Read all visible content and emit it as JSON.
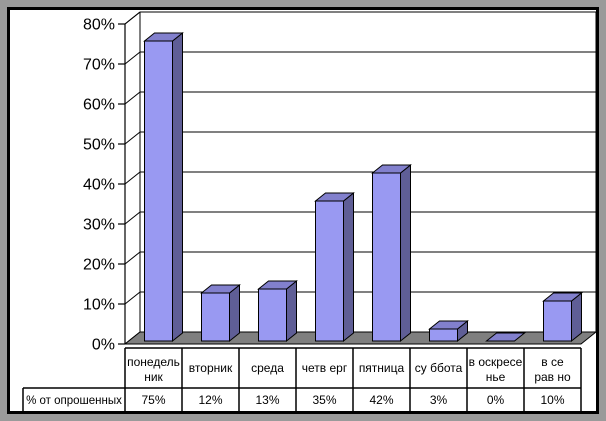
{
  "chart_data": {
    "type": "bar",
    "style": "3d-column",
    "title": "",
    "xlabel": "",
    "ylabel": "",
    "ylim": [
      0,
      80
    ],
    "ytick_step": 10,
    "ytick_labels": [
      "0%",
      "10%",
      "20%",
      "30%",
      "40%",
      "50%",
      "60%",
      "70%",
      "80%"
    ],
    "grid": true,
    "legend_position": "none",
    "categories": [
      "понедельник",
      "вторник",
      "среда",
      "четверг",
      "пятница",
      "суббота",
      "воскресенье",
      "все равно"
    ],
    "category_labels_wrapped": [
      [
        "понедель",
        "ник"
      ],
      [
        "вторник"
      ],
      [
        "среда"
      ],
      [
        "четв ерг"
      ],
      [
        "пятница"
      ],
      [
        "су ббота"
      ],
      [
        "в оскресе",
        "нье"
      ],
      [
        "в се",
        "рав но"
      ]
    ],
    "series": [
      {
        "name": "% от опрошенных",
        "values": [
          75,
          12,
          13,
          35,
          42,
          3,
          0,
          10
        ],
        "value_labels": [
          "75%",
          "12%",
          "13%",
          "35%",
          "42%",
          "3%",
          "0%",
          "10%"
        ]
      }
    ],
    "data_table": {
      "row_header": "% от опрошенных",
      "row_values": [
        "75%",
        "12%",
        "13%",
        "35%",
        "42%",
        "3%",
        "0%",
        "10%"
      ]
    }
  },
  "colors": {
    "bar_front": "#9999F2",
    "bar_side": "#5F5E96",
    "bar_top": "#8280CD",
    "floor": "#7F7F7F",
    "wall": "#FFFFFF",
    "outer_border": "#9A9A9A",
    "frame": "#000000",
    "line": "#000000",
    "text": "#000000"
  }
}
